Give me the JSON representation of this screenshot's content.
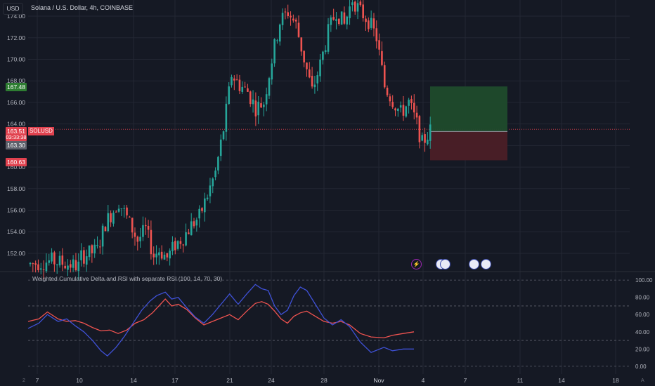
{
  "header": {
    "currency_button": "USD",
    "title": "Solana / U.S. Dollar, 4h, COINBASE"
  },
  "price_badges": {
    "target": "167.48",
    "current": "163.51",
    "countdown": "03:33:38",
    "entry": "163.30",
    "stop": "160.63",
    "symbol_tag": "SOLUSD"
  },
  "indicator": {
    "title": "Weighted Cumulative Delta and RSI with separate RSI (100, 14, 70, 30)"
  },
  "events": {
    "flash_icon": "⚡",
    "flag_icon": "us-flag"
  },
  "corner_labels": {
    "left": "2",
    "right": "A"
  },
  "colors": {
    "background": "#151924",
    "up": "#26a69a",
    "down": "#ef5350",
    "grid": "#232733",
    "profit_zone": "#1f4b2c",
    "loss_zone": "#4b1f27",
    "rsi": "#ef5350",
    "delta": "#3f51d6"
  },
  "chart_data": [
    {
      "type": "candlestick",
      "title": "Solana / U.S. Dollar, 4h, COINBASE",
      "ylim": [
        150.5,
        175.5
      ],
      "y_ticks": [
        "152.00",
        "154.00",
        "156.00",
        "158.00",
        "160.00",
        "162.00",
        "164.00",
        "166.00",
        "168.00",
        "170.00",
        "172.00",
        "174.00"
      ],
      "x_ticks": [
        "7",
        "10",
        "14",
        "17",
        "21",
        "24",
        "28",
        "Nov",
        "4",
        "7",
        "11",
        "14",
        "18"
      ],
      "grid": true,
      "close_path": [
        {
          "t": 0,
          "v": 151.0
        },
        {
          "t": 8,
          "v": 151.3
        },
        {
          "t": 18,
          "v": 150.8
        },
        {
          "t": 19,
          "v": 151.7
        },
        {
          "t": 25,
          "v": 152.3
        },
        {
          "t": 28,
          "v": 154.8
        },
        {
          "t": 33,
          "v": 156.8
        },
        {
          "t": 36,
          "v": 155.3
        },
        {
          "t": 40,
          "v": 153.2
        },
        {
          "t": 43,
          "v": 154.2
        },
        {
          "t": 46,
          "v": 151.8
        },
        {
          "t": 48,
          "v": 152.3
        },
        {
          "t": 51,
          "v": 151.6
        },
        {
          "t": 54,
          "v": 152.8
        },
        {
          "t": 57,
          "v": 153.5
        },
        {
          "t": 60,
          "v": 154.6
        },
        {
          "t": 63,
          "v": 155.4
        },
        {
          "t": 66,
          "v": 157.4
        },
        {
          "t": 69,
          "v": 159.5
        },
        {
          "t": 72,
          "v": 163.5
        },
        {
          "t": 75,
          "v": 168.6
        },
        {
          "t": 78,
          "v": 167.6
        },
        {
          "t": 81,
          "v": 167.0
        },
        {
          "t": 84,
          "v": 165.5
        },
        {
          "t": 87,
          "v": 166.0
        },
        {
          "t": 90,
          "v": 170.0
        },
        {
          "t": 93,
          "v": 173.5
        },
        {
          "t": 96,
          "v": 174.4
        },
        {
          "t": 99,
          "v": 173.2
        },
        {
          "t": 102,
          "v": 170.0
        },
        {
          "t": 105,
          "v": 167.0
        },
        {
          "t": 108,
          "v": 169.5
        },
        {
          "t": 111,
          "v": 172.5
        },
        {
          "t": 114,
          "v": 174.5
        },
        {
          "t": 117,
          "v": 173.2
        },
        {
          "t": 120,
          "v": 175.6
        },
        {
          "t": 123,
          "v": 174.4
        },
        {
          "t": 126,
          "v": 173.6
        },
        {
          "t": 129,
          "v": 172.0
        },
        {
          "t": 132,
          "v": 167.5
        },
        {
          "t": 135,
          "v": 166.2
        },
        {
          "t": 138,
          "v": 165.0
        },
        {
          "t": 141,
          "v": 166.0
        },
        {
          "t": 144,
          "v": 164.0
        },
        {
          "t": 146,
          "v": 162.2
        },
        {
          "t": 149,
          "v": 163.4
        }
      ],
      "candle_count": 150,
      "last_price": 163.51,
      "position": {
        "entry": 163.3,
        "target": 167.48,
        "stop": 160.63
      }
    },
    {
      "type": "line",
      "title": "Weighted Cumulative Delta and RSI with separate RSI (100, 14, 70, 30)",
      "ylim": [
        -5,
        105
      ],
      "y_ticks": [
        "0.00",
        "20.00",
        "40.00",
        "60.00",
        "80.00",
        "100.00"
      ],
      "levels": [
        0,
        30,
        70,
        100
      ],
      "series": [
        {
          "color": "#ef5350",
          "points": [
            {
              "t": 0,
              "v": 52
            },
            {
              "t": 5,
              "v": 55
            },
            {
              "t": 9,
              "v": 63
            },
            {
              "t": 14,
              "v": 55
            },
            {
              "t": 18,
              "v": 52
            },
            {
              "t": 22,
              "v": 53
            },
            {
              "t": 26,
              "v": 50
            },
            {
              "t": 30,
              "v": 45
            },
            {
              "t": 34,
              "v": 41
            },
            {
              "t": 38,
              "v": 42
            },
            {
              "t": 42,
              "v": 38
            },
            {
              "t": 46,
              "v": 42
            },
            {
              "t": 50,
              "v": 50
            },
            {
              "t": 54,
              "v": 54
            },
            {
              "t": 58,
              "v": 62
            },
            {
              "t": 61,
              "v": 70
            },
            {
              "t": 64,
              "v": 78
            },
            {
              "t": 67,
              "v": 70
            },
            {
              "t": 70,
              "v": 72
            },
            {
              "t": 74,
              "v": 66
            },
            {
              "t": 78,
              "v": 56
            },
            {
              "t": 82,
              "v": 48
            },
            {
              "t": 86,
              "v": 52
            },
            {
              "t": 90,
              "v": 56
            },
            {
              "t": 94,
              "v": 60
            },
            {
              "t": 98,
              "v": 54
            },
            {
              "t": 102,
              "v": 64
            },
            {
              "t": 106,
              "v": 73
            },
            {
              "t": 109,
              "v": 75
            },
            {
              "t": 112,
              "v": 72
            },
            {
              "t": 115,
              "v": 64
            },
            {
              "t": 118,
              "v": 55
            },
            {
              "t": 121,
              "v": 50
            },
            {
              "t": 124,
              "v": 58
            },
            {
              "t": 127,
              "v": 62
            },
            {
              "t": 130,
              "v": 64
            },
            {
              "t": 134,
              "v": 58
            },
            {
              "t": 138,
              "v": 52
            },
            {
              "t": 142,
              "v": 50
            },
            {
              "t": 146,
              "v": 52
            },
            {
              "t": 150,
              "v": 48
            },
            {
              "t": 155,
              "v": 38
            },
            {
              "t": 160,
              "v": 34
            },
            {
              "t": 166,
              "v": 33
            },
            {
              "t": 170,
              "v": 36
            },
            {
              "t": 175,
              "v": 38
            },
            {
              "t": 180,
              "v": 40
            }
          ]
        },
        {
          "color": "#3f51d6",
          "points": [
            {
              "t": 0,
              "v": 44
            },
            {
              "t": 5,
              "v": 50
            },
            {
              "t": 9,
              "v": 60
            },
            {
              "t": 14,
              "v": 52
            },
            {
              "t": 18,
              "v": 55
            },
            {
              "t": 22,
              "v": 47
            },
            {
              "t": 26,
              "v": 40
            },
            {
              "t": 30,
              "v": 30
            },
            {
              "t": 34,
              "v": 18
            },
            {
              "t": 37,
              "v": 12
            },
            {
              "t": 41,
              "v": 22
            },
            {
              "t": 45,
              "v": 35
            },
            {
              "t": 49,
              "v": 50
            },
            {
              "t": 53,
              "v": 65
            },
            {
              "t": 57,
              "v": 76
            },
            {
              "t": 60,
              "v": 82
            },
            {
              "t": 64,
              "v": 86
            },
            {
              "t": 67,
              "v": 78
            },
            {
              "t": 70,
              "v": 80
            },
            {
              "t": 74,
              "v": 68
            },
            {
              "t": 78,
              "v": 57
            },
            {
              "t": 82,
              "v": 50
            },
            {
              "t": 86,
              "v": 60
            },
            {
              "t": 90,
              "v": 72
            },
            {
              "t": 94,
              "v": 84
            },
            {
              "t": 98,
              "v": 72
            },
            {
              "t": 102,
              "v": 84
            },
            {
              "t": 106,
              "v": 95
            },
            {
              "t": 109,
              "v": 90
            },
            {
              "t": 112,
              "v": 88
            },
            {
              "t": 115,
              "v": 70
            },
            {
              "t": 118,
              "v": 60
            },
            {
              "t": 121,
              "v": 65
            },
            {
              "t": 124,
              "v": 82
            },
            {
              "t": 127,
              "v": 92
            },
            {
              "t": 130,
              "v": 88
            },
            {
              "t": 134,
              "v": 72
            },
            {
              "t": 138,
              "v": 56
            },
            {
              "t": 142,
              "v": 48
            },
            {
              "t": 146,
              "v": 54
            },
            {
              "t": 150,
              "v": 46
            },
            {
              "t": 155,
              "v": 28
            },
            {
              "t": 160,
              "v": 16
            },
            {
              "t": 166,
              "v": 22
            },
            {
              "t": 170,
              "v": 18
            },
            {
              "t": 175,
              "v": 20
            },
            {
              "t": 180,
              "v": 20
            }
          ]
        }
      ]
    }
  ]
}
